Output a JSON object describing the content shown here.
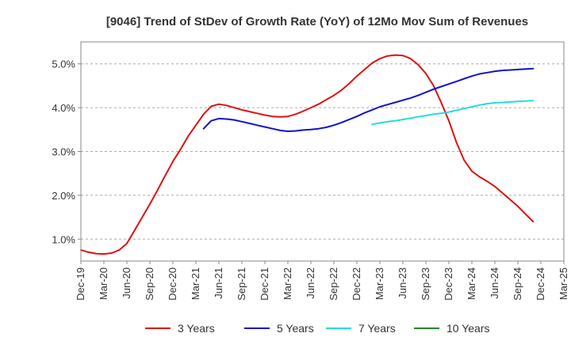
{
  "chart_data": {
    "type": "line",
    "title": "[9046]  Trend of StDev of Growth Rate (YoY) of 12Mo Mov Sum of Revenues",
    "xlabel": "",
    "ylabel": "",
    "x_ticks": [
      "Dec-19",
      "Mar-20",
      "Jun-20",
      "Sep-20",
      "Dec-20",
      "Mar-21",
      "Jun-21",
      "Sep-21",
      "Dec-21",
      "Mar-22",
      "Jun-22",
      "Sep-22",
      "Dec-22",
      "Mar-23",
      "Jun-23",
      "Sep-23",
      "Dec-23",
      "Mar-24",
      "Jun-24",
      "Sep-24",
      "Dec-24",
      "Mar-25"
    ],
    "xlim": [
      0,
      63
    ],
    "ylim": [
      0.5,
      5.5
    ],
    "y_ticks": [
      1.0,
      2.0,
      3.0,
      4.0,
      5.0
    ],
    "y_tick_labels": [
      "1.0%",
      "2.0%",
      "3.0%",
      "4.0%",
      "5.0%"
    ],
    "grid": "horizontal-dashed",
    "legend_position": "bottom",
    "series": [
      {
        "name": "3 Years",
        "color": "#dd1111",
        "x": [
          0,
          1,
          2,
          3,
          4,
          5,
          6,
          7,
          8,
          9,
          10,
          11,
          12,
          13,
          14,
          15,
          16,
          17,
          18,
          19,
          20,
          21,
          22,
          23,
          24,
          25,
          26,
          27,
          28,
          29,
          30,
          31,
          32,
          33,
          34,
          35,
          36,
          37,
          38,
          39,
          40,
          41,
          42,
          43,
          44,
          45,
          46,
          47,
          48,
          49,
          50,
          51,
          52,
          53,
          54,
          55,
          56,
          57,
          58,
          59,
          60,
          61,
          62,
          63
        ],
        "values": [
          0.75,
          0.7,
          0.67,
          0.66,
          0.68,
          0.75,
          0.9,
          1.2,
          1.5,
          1.8,
          2.12,
          2.45,
          2.77,
          3.05,
          3.35,
          3.6,
          3.85,
          4.03,
          4.08,
          4.05,
          4.0,
          3.95,
          3.91,
          3.87,
          3.83,
          3.8,
          3.79,
          3.8,
          3.85,
          3.92,
          4.0,
          4.08,
          4.18,
          4.28,
          4.4,
          4.55,
          4.72,
          4.87,
          5.02,
          5.12,
          5.18,
          5.2,
          5.19,
          5.12,
          4.98,
          4.78,
          4.5,
          4.12,
          3.7,
          3.2,
          2.8,
          2.55,
          2.42,
          2.32,
          2.2,
          2.05,
          1.9,
          1.75,
          1.57,
          1.4,
          null,
          null,
          null,
          null
        ]
      },
      {
        "name": "5 Years",
        "color": "#1111cc",
        "x": [
          0,
          1,
          2,
          3,
          4,
          5,
          6,
          7,
          8,
          9,
          10,
          11,
          12,
          13,
          14,
          15,
          16,
          17,
          18,
          19,
          20,
          21,
          22,
          23,
          24,
          25,
          26,
          27,
          28,
          29,
          30,
          31,
          32,
          33,
          34,
          35,
          36,
          37,
          38,
          39,
          40,
          41,
          42,
          43,
          44,
          45,
          46,
          47,
          48,
          49,
          50,
          51,
          52,
          53,
          54,
          55,
          56,
          57,
          58,
          59,
          60,
          61,
          62,
          63
        ],
        "values": [
          null,
          null,
          null,
          null,
          null,
          null,
          null,
          null,
          null,
          null,
          null,
          null,
          null,
          null,
          null,
          null,
          3.52,
          3.7,
          3.75,
          3.74,
          3.72,
          3.68,
          3.64,
          3.6,
          3.56,
          3.52,
          3.48,
          3.46,
          3.47,
          3.49,
          3.5,
          3.52,
          3.55,
          3.6,
          3.66,
          3.73,
          3.8,
          3.88,
          3.95,
          4.02,
          4.07,
          4.12,
          4.17,
          4.22,
          4.28,
          4.35,
          4.42,
          4.48,
          4.54,
          4.6,
          4.66,
          4.72,
          4.77,
          4.8,
          4.83,
          4.85,
          4.86,
          4.87,
          4.88,
          4.89,
          null,
          null,
          null,
          null
        ]
      },
      {
        "name": "7 Years",
        "color": "#22dddd",
        "x": [
          0,
          1,
          2,
          3,
          4,
          5,
          6,
          7,
          8,
          9,
          10,
          11,
          12,
          13,
          14,
          15,
          16,
          17,
          18,
          19,
          20,
          21,
          22,
          23,
          24,
          25,
          26,
          27,
          28,
          29,
          30,
          31,
          32,
          33,
          34,
          35,
          36,
          37,
          38,
          39,
          40,
          41,
          42,
          43,
          44,
          45,
          46,
          47,
          48,
          49,
          50,
          51,
          52,
          53,
          54,
          55,
          56,
          57,
          58,
          59,
          60,
          61,
          62,
          63
        ],
        "values": [
          null,
          null,
          null,
          null,
          null,
          null,
          null,
          null,
          null,
          null,
          null,
          null,
          null,
          null,
          null,
          null,
          null,
          null,
          null,
          null,
          null,
          null,
          null,
          null,
          null,
          null,
          null,
          null,
          null,
          null,
          null,
          null,
          null,
          null,
          null,
          null,
          null,
          null,
          3.62,
          3.65,
          3.68,
          3.7,
          3.73,
          3.76,
          3.79,
          3.82,
          3.85,
          3.87,
          3.9,
          3.94,
          3.98,
          4.02,
          4.06,
          4.09,
          4.11,
          4.12,
          4.13,
          4.14,
          4.15,
          4.16,
          null,
          null,
          null,
          null
        ]
      },
      {
        "name": "10 Years",
        "color": "#228822",
        "x": [],
        "values": []
      }
    ]
  }
}
